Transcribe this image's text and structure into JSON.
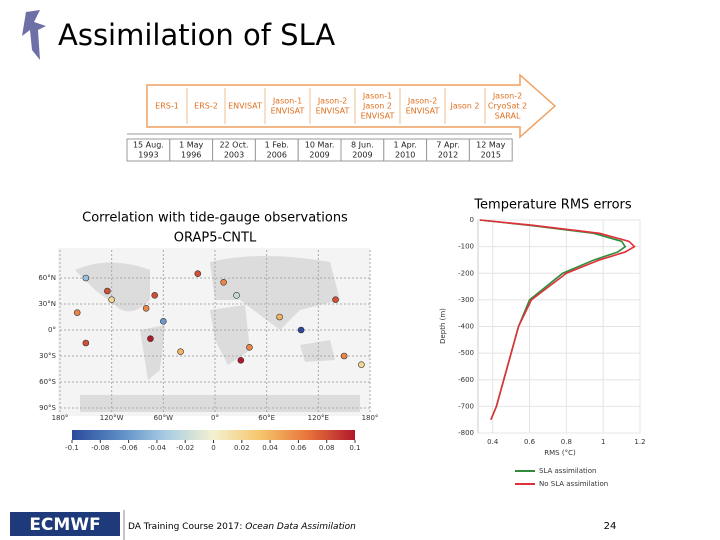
{
  "title": "Assimilation of SLA",
  "timeline": {
    "missions": [
      [
        "ERS-1"
      ],
      [
        "ERS-2"
      ],
      [
        "ENVISAT"
      ],
      [
        "Jason-1",
        "ENVISAT"
      ],
      [
        "Jason-2",
        "ENVISAT"
      ],
      [
        "Jason-1",
        "Jason 2",
        "ENVISAT"
      ],
      [
        "Jason-2",
        "ENVISAT"
      ],
      [
        "Jason 2"
      ],
      [
        "Jason-2",
        "CryoSat 2",
        "SARAL"
      ]
    ],
    "dates": [
      [
        "15 Aug.",
        "1993"
      ],
      [
        "1 May",
        "1996"
      ],
      [
        "22 Oct.",
        "2003"
      ],
      [
        "1 Feb.",
        "2006"
      ],
      [
        "10 Mar.",
        "2009"
      ],
      [
        "8 Jun.",
        "2009"
      ],
      [
        "1 Apr.",
        "2010"
      ],
      [
        "7 Apr.",
        "2012"
      ],
      [
        "12 May",
        "2015"
      ]
    ]
  },
  "left_panel": {
    "title_lines": [
      "Correlation with tide-gauge observations",
      "ORAP5-CNTL"
    ],
    "map": {
      "xlim": [
        -180,
        180
      ],
      "ylim": [
        -90,
        90
      ],
      "xticks": [
        {
          "value": -180,
          "label": "180°"
        },
        {
          "value": -120,
          "label": "120°W"
        },
        {
          "value": -60,
          "label": "60°W"
        },
        {
          "value": 0,
          "label": "0°"
        },
        {
          "value": 60,
          "label": "60°E"
        },
        {
          "value": 120,
          "label": "120°E"
        },
        {
          "value": 180,
          "label": "180°"
        }
      ],
      "yticks": [
        {
          "value": 60,
          "label": "60°N"
        },
        {
          "value": 30,
          "label": "30°N"
        },
        {
          "value": 0,
          "label": "0°"
        },
        {
          "value": -30,
          "label": "30°S"
        },
        {
          "value": -60,
          "label": "60°S"
        },
        {
          "value": -90,
          "label": "90°S"
        }
      ],
      "stations": {
        "lon": [
          -160,
          -150,
          -125,
          -120,
          -80,
          -70,
          -60,
          -40,
          -75,
          -20,
          10,
          25,
          40,
          75,
          100,
          140,
          150,
          170,
          -150,
          30
        ],
        "lat": [
          20,
          60,
          45,
          35,
          25,
          40,
          10,
          -25,
          -10,
          65,
          55,
          40,
          -20,
          15,
          0,
          35,
          -30,
          -40,
          -15,
          -35
        ],
        "values": [
          0.06,
          -0.04,
          0.08,
          0.02,
          0.06,
          0.08,
          -0.06,
          0.04,
          0.1,
          0.08,
          0.06,
          -0.02,
          0.06,
          0.04,
          -0.1,
          0.08,
          0.06,
          0.02,
          0.08,
          0.1
        ]
      }
    },
    "colorbar": {
      "ticks": [
        -0.1,
        -0.08,
        -0.06,
        -0.04,
        -0.02,
        0,
        0.02,
        0.04,
        0.06,
        0.08,
        0.1
      ],
      "colors": [
        "#2a4b9b",
        "#5b8bc5",
        "#a9cde3",
        "#f4f1d0",
        "#f6c56b",
        "#e8743b",
        "#b2182b"
      ]
    }
  },
  "rms_chart": {
    "type": "line",
    "title": "Temperature RMS errors",
    "x_label": "RMS (°C)",
    "y_label": "Depth (m)",
    "depths": [
      0,
      -20,
      -50,
      -80,
      -100,
      -120,
      -150,
      -200,
      -300,
      -400,
      -500,
      -600,
      -700,
      -750
    ],
    "series": [
      {
        "name": "SLA assimilation",
        "color": "#2e8b3a",
        "values": [
          0.33,
          0.6,
          0.95,
          1.1,
          1.12,
          1.08,
          0.95,
          0.78,
          0.6,
          0.54,
          0.5,
          0.46,
          0.42,
          0.39
        ]
      },
      {
        "name": "No SLA assimilation",
        "color": "#e0303a",
        "values": [
          0.33,
          0.62,
          0.98,
          1.14,
          1.17,
          1.12,
          0.98,
          0.8,
          0.61,
          0.54,
          0.5,
          0.46,
          0.42,
          0.39
        ]
      }
    ],
    "xlim": [
      0.32,
      1.2
    ],
    "ylim": [
      -800,
      0
    ],
    "xticks": [
      0.4,
      0.6,
      0.8,
      1,
      1.2
    ],
    "yticks": [
      0,
      -100,
      -200,
      -300,
      -400,
      -500,
      -600,
      -700,
      -800
    ],
    "grid": true
  },
  "footer": {
    "logo": "ECMWF",
    "course": "DA Training Course 2017: ",
    "subject": "Ocean Data Assimilation",
    "page": "24"
  }
}
